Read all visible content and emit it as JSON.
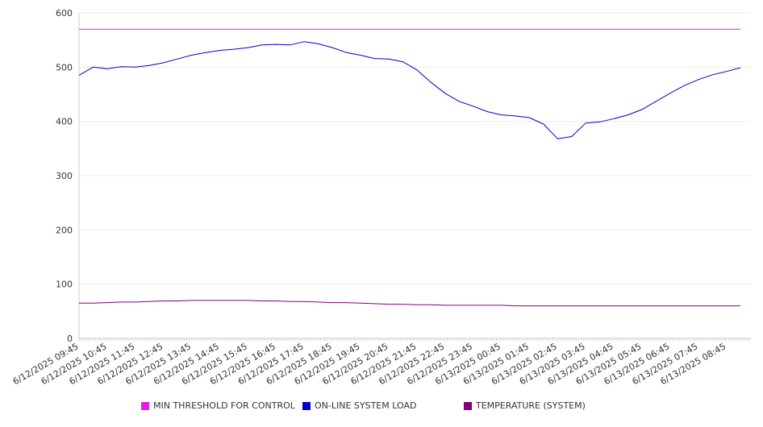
{
  "chart_data": {
    "type": "line",
    "title": "",
    "xlabel": "",
    "ylabel": "",
    "ylim": [
      0,
      600
    ],
    "yticks": [
      0,
      100,
      200,
      300,
      400,
      500,
      600
    ],
    "grid": true,
    "legend_position": "bottom",
    "x_tick_labels": [
      "6/12/2025 09:45",
      "6/12/2025 10:45",
      "6/12/2025 11:45",
      "6/12/2025 12:45",
      "6/12/2025 13:45",
      "6/12/2025 14:45",
      "6/12/2025 15:45",
      "6/12/2025 16:45",
      "6/12/2025 17:45",
      "6/12/2025 18:45",
      "6/12/2025 19:45",
      "6/12/2025 20:45",
      "6/12/2025 21:45",
      "6/12/2025 22:45",
      "6/12/2025 23:45",
      "6/13/2025 00:45",
      "6/13/2025 01:45",
      "6/13/2025 02:45",
      "6/13/2025 03:45",
      "6/13/2025 04:45",
      "6/13/2025 05:45",
      "6/13/2025 06:45",
      "6/13/2025 07:45",
      "6/13/2025 08:45"
    ],
    "x": [
      "6/12/2025 09:45",
      "6/12/2025 10:15",
      "6/12/2025 10:45",
      "6/12/2025 11:15",
      "6/12/2025 11:45",
      "6/12/2025 12:15",
      "6/12/2025 12:45",
      "6/12/2025 13:15",
      "6/12/2025 13:45",
      "6/12/2025 14:15",
      "6/12/2025 14:45",
      "6/12/2025 15:15",
      "6/12/2025 15:45",
      "6/12/2025 16:15",
      "6/12/2025 16:45",
      "6/12/2025 17:15",
      "6/12/2025 17:45",
      "6/12/2025 18:15",
      "6/12/2025 18:45",
      "6/12/2025 19:15",
      "6/12/2025 19:45",
      "6/12/2025 20:15",
      "6/12/2025 20:45",
      "6/12/2025 21:15",
      "6/12/2025 21:45",
      "6/12/2025 22:15",
      "6/12/2025 22:45",
      "6/12/2025 23:15",
      "6/12/2025 23:45",
      "6/13/2025 00:15",
      "6/13/2025 00:45",
      "6/13/2025 01:15",
      "6/13/2025 01:45",
      "6/13/2025 02:15",
      "6/13/2025 02:45",
      "6/13/2025 03:15",
      "6/13/2025 03:45",
      "6/13/2025 04:15",
      "6/13/2025 04:45",
      "6/13/2025 05:15",
      "6/13/2025 05:45",
      "6/13/2025 06:15",
      "6/13/2025 06:45",
      "6/13/2025 07:15",
      "6/13/2025 07:45",
      "6/13/2025 08:15",
      "6/13/2025 08:45",
      "6/13/2025 09:15"
    ],
    "series": [
      {
        "name": "MIN THRESHOLD FOR CONTROL",
        "color": "#cc33cc",
        "values": [
          570,
          570,
          570,
          570,
          570,
          570,
          570,
          570,
          570,
          570,
          570,
          570,
          570,
          570,
          570,
          570,
          570,
          570,
          570,
          570,
          570,
          570,
          570,
          570,
          570,
          570,
          570,
          570,
          570,
          570,
          570,
          570,
          570,
          570,
          570,
          570,
          570,
          570,
          570,
          570,
          570,
          570,
          570,
          570,
          570,
          570,
          570,
          570
        ]
      },
      {
        "name": "ON-LINE SYSTEM LOAD",
        "color": "#0000cc",
        "values": [
          485,
          500,
          497,
          501,
          500,
          503,
          508,
          515,
          522,
          527,
          531,
          533,
          536,
          541,
          542,
          541,
          547,
          543,
          536,
          527,
          522,
          516,
          515,
          510,
          495,
          472,
          452,
          437,
          428,
          418,
          412,
          410,
          407,
          395,
          368,
          372,
          397,
          399,
          405,
          412,
          422,
          437,
          452,
          466,
          477,
          486,
          492,
          499
        ]
      },
      {
        "name": "TEMPERATURE (SYSTEM)",
        "color": "#800080",
        "values": [
          65,
          65,
          66,
          67,
          67,
          68,
          69,
          69,
          70,
          70,
          70,
          70,
          70,
          69,
          69,
          68,
          68,
          67,
          66,
          66,
          65,
          64,
          63,
          63,
          62,
          62,
          61,
          61,
          61,
          61,
          61,
          60,
          60,
          60,
          60,
          60,
          60,
          60,
          60,
          60,
          60,
          60,
          60,
          60,
          60,
          60,
          60,
          60
        ]
      }
    ]
  }
}
